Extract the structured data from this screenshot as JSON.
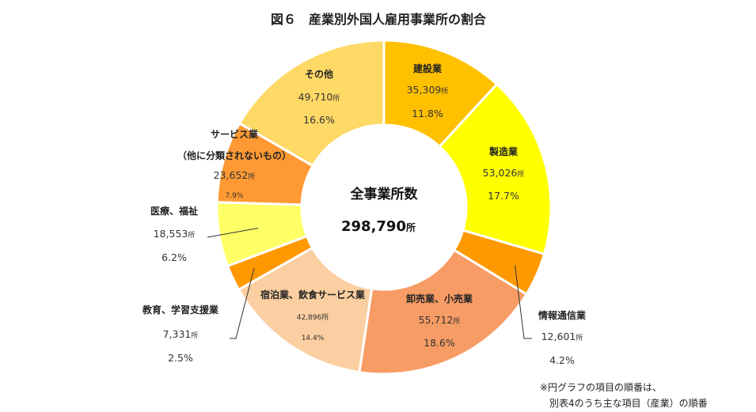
{
  "chart_data": {
    "type": "pie",
    "title": "図６　産業別外国人雇用事業所の割合",
    "center_label": "全事業所数",
    "center_value": "298,790",
    "center_unit": "所",
    "unit": "所",
    "slices": [
      {
        "name": "建設業",
        "count": "35,309",
        "value": 11.8,
        "pct": "11.8%",
        "color": "#FFC000"
      },
      {
        "name": "製造業",
        "count": "53,026",
        "value": 17.7,
        "pct": "17.7%",
        "color": "#FFFF00"
      },
      {
        "name": "情報通信業",
        "count": "12,601",
        "value": 4.2,
        "pct": "4.2%",
        "color": "#FF9900"
      },
      {
        "name": "卸売業、小売業",
        "count": "55,712",
        "value": 18.6,
        "pct": "18.6%",
        "color": "#F79C65"
      },
      {
        "name": "宿泊業、飲食サービス業",
        "count": "42,896",
        "value": 14.4,
        "pct": "14.4%",
        "color": "#FBCFA1"
      },
      {
        "name": "教育、学習支援業",
        "count": "7,331",
        "value": 2.5,
        "pct": "2.5%",
        "color": "#FF9900"
      },
      {
        "name": "医療、福祉",
        "count": "18,553",
        "value": 6.2,
        "pct": "6.2%",
        "color": "#FFFF66"
      },
      {
        "name": "サービス業",
        "name2": "（他に分類されないもの）",
        "count": "23,652",
        "value": 7.9,
        "pct": "7.9%",
        "color": "#FF9933"
      },
      {
        "name": "その他",
        "count": "49,710",
        "value": 16.6,
        "pct": "16.6%",
        "color": "#FFD966"
      }
    ],
    "note_line1": "※円グラフの項目の順番は、",
    "note_line2": "別表4のうち主な項目（産業）の順番"
  }
}
